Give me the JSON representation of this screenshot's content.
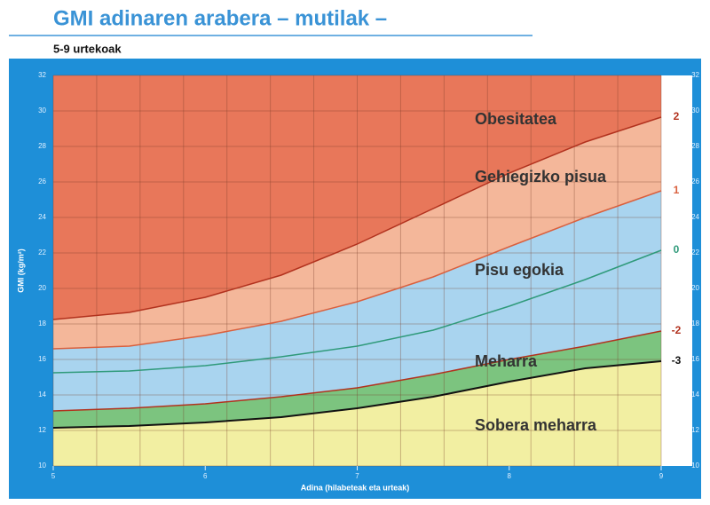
{
  "chart_data": {
    "type": "area",
    "title": "GMI adinaren arabera – mutilak –",
    "subtitle": "5-9 urtekoak",
    "xlabel": "Adina (hilabeteak eta urteak)",
    "ylabel": "GMI (kg/m²)",
    "x": [
      5,
      5.5,
      6,
      6.5,
      7,
      7.5,
      8,
      8.5,
      9
    ],
    "xlim": [
      5,
      9
    ],
    "xticks": [
      5,
      6,
      7,
      8,
      9
    ],
    "ylim": [
      10,
      32
    ],
    "yticks": [
      10,
      12,
      14,
      16,
      18,
      20,
      22,
      24,
      26,
      28,
      30,
      32
    ],
    "grid": true,
    "series": [
      {
        "name": "2",
        "color": "#b2321e",
        "values": [
          18.25,
          18.65,
          19.5,
          20.75,
          22.5,
          24.5,
          26.5,
          28.25,
          29.65
        ]
      },
      {
        "name": "1",
        "color": "#d9603e",
        "values": [
          16.6,
          16.75,
          17.35,
          18.15,
          19.25,
          20.65,
          22.35,
          24.0,
          25.5
        ]
      },
      {
        "name": "0",
        "color": "#2f9a7a",
        "values": [
          15.25,
          15.35,
          15.65,
          16.15,
          16.75,
          17.65,
          19.0,
          20.5,
          22.15
        ]
      },
      {
        "name": "-2",
        "color": "#b2321e",
        "values": [
          13.1,
          13.25,
          13.5,
          13.9,
          14.4,
          15.15,
          16.0,
          16.75,
          17.6
        ]
      },
      {
        "name": "-3",
        "color": "#111111",
        "values": [
          12.15,
          12.25,
          12.45,
          12.75,
          13.25,
          13.9,
          14.75,
          15.5,
          15.9
        ]
      }
    ],
    "zones": [
      {
        "label": "Obesitatea",
        "color": "#e8775a"
      },
      {
        "label": "Gehiegizko pisua",
        "color": "#f4b79a"
      },
      {
        "label": "Pisu egokia",
        "color": "#a9d4ef"
      },
      {
        "label": "Meharra",
        "color": "#7cc47f"
      },
      {
        "label": "Sobera meharra",
        "color": "#f2efa2"
      }
    ]
  }
}
